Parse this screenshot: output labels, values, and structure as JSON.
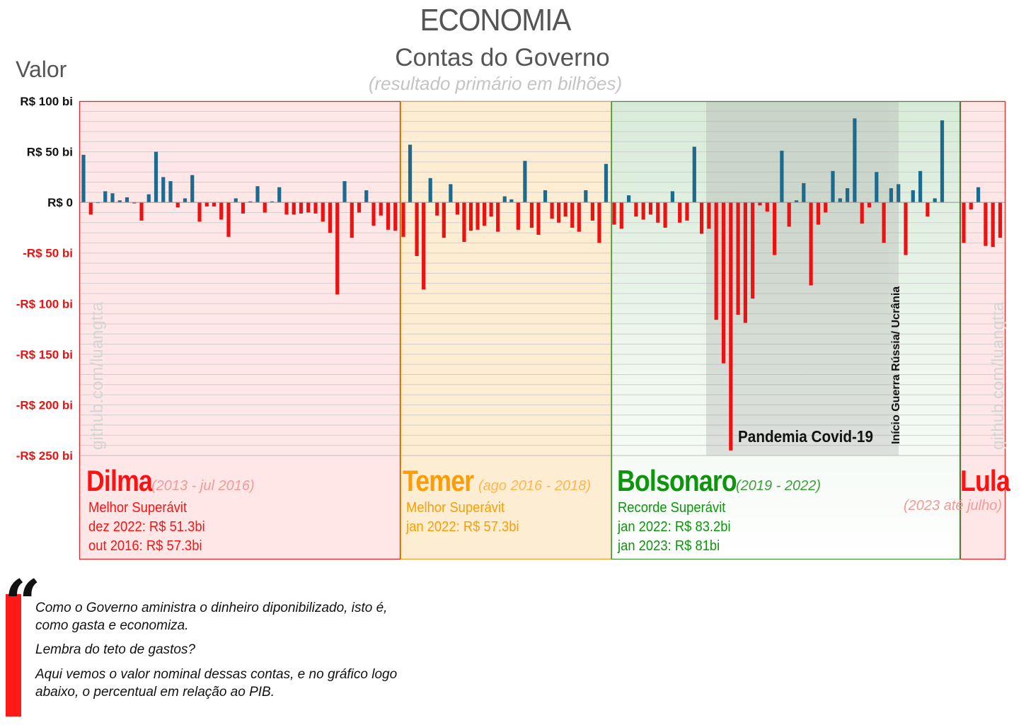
{
  "header": {
    "title": "ECONOMIA",
    "subtitle": "Contas do Governo",
    "note": "(resultado primário em bilhões)",
    "y_axis_title": "Valor"
  },
  "colors": {
    "positive_bar": "#1c6a8e",
    "negative_bar": "#ee1111",
    "dilma": "#ff1111",
    "temer": "#ff9d00",
    "bolsonaro": "#0c960c",
    "lula": "#ff1111",
    "pandemic_shade": "#9a9a9a",
    "grid": "#cfcfcf"
  },
  "chart_data": {
    "type": "bar",
    "title": "Contas do Governo",
    "subtitle": "(resultado primário em bilhões)",
    "ylabel": "Valor",
    "ylim": [
      -250,
      100
    ],
    "yticks": [
      {
        "value": 100,
        "label": "R$ 100 bi"
      },
      {
        "value": 50,
        "label": "R$ 50 bi"
      },
      {
        "value": 0,
        "label": "R$ 0"
      },
      {
        "value": -50,
        "label": "-R$ 50 bi"
      },
      {
        "value": -100,
        "label": "-R$ 100 bi"
      },
      {
        "value": -150,
        "label": "-R$ 150 bi"
      },
      {
        "value": -200,
        "label": "-R$ 200 bi"
      },
      {
        "value": -250,
        "label": "-R$ 250 bi"
      }
    ],
    "grid": true,
    "groups": [
      {
        "name": "Dilma",
        "values": [
          47,
          -12,
          0,
          11,
          9,
          2,
          5,
          -1,
          -18,
          8,
          50,
          25,
          21,
          -5,
          4,
          27,
          -19,
          -4,
          -4,
          -17,
          -34,
          4,
          -11,
          1,
          16,
          -10,
          1,
          15,
          -12,
          -12,
          -11,
          -10,
          -11,
          -19,
          -30,
          -91,
          21,
          -35,
          -10,
          12,
          -23,
          -13,
          -27,
          -28
        ]
      },
      {
        "name": "Temer",
        "values": [
          -34,
          57,
          -53,
          -86,
          24,
          -13,
          -35,
          18,
          -12,
          -39,
          -28,
          -27,
          -23,
          -14,
          -29,
          6,
          3,
          -27,
          41,
          -25,
          -32,
          12,
          -16,
          -20,
          -14,
          -25,
          -29,
          12,
          -18,
          -40,
          38
        ]
      },
      {
        "name": "Bolsonaro",
        "values": [
          -22,
          -26,
          7,
          -14,
          -17,
          -12,
          -20,
          -25,
          11,
          -20,
          -18,
          55,
          -31,
          -26,
          -116,
          -159,
          -245,
          -111,
          -119,
          -95,
          -3,
          -9,
          -52,
          51,
          -24,
          2,
          19,
          -82,
          -22,
          -10,
          31,
          4,
          14,
          83,
          -21,
          -5,
          30,
          -40,
          14,
          18,
          -52,
          12,
          31,
          -14,
          4,
          81
        ]
      },
      {
        "name": "Lula",
        "values": [
          -40,
          -7,
          15,
          -43,
          -44,
          -35
        ]
      }
    ],
    "annotations": [
      {
        "text": "Pandemia Covid-19",
        "range": "Bolsonaro 2020-2021"
      },
      {
        "text": "Início Guerra Rússia/ Ucrânia",
        "at": "Bolsonaro 2022"
      }
    ]
  },
  "governments": [
    {
      "name": "Dilma",
      "period": "(2013 - jul 2016)",
      "lines": [
        "Melhor Superávit",
        "dez 2022: R$ 51.3bi",
        "out 2016: R$ 57.3bi"
      ]
    },
    {
      "name": "Temer",
      "period": "(ago 2016 - 2018)",
      "lines": [
        "Melhor Superávit",
        "jan 2022: R$ 57.3bi"
      ]
    },
    {
      "name": "Bolsonaro",
      "period": "(2019 - 2022)",
      "lines": [
        "Recorde Superávit",
        "jan 2022: R$ 83.2bi",
        "jan 2023: R$ 81bi"
      ]
    },
    {
      "name": "Lula",
      "period": "(2023 até julho)",
      "lines": []
    }
  ],
  "watermark": "github.com/luangtta",
  "quote": {
    "p1_line1": "Como o Governo aministra o dinheiro diponibilizado, isto é,",
    "p1_line2": "como gasta e economiza.",
    "p2": "Lembra do teto de gastos?",
    "p3_line1": "Aqui vemos o valor nominal dessas contas, e no gráfico logo",
    "p3_line2": "abaixo, o percentual em relação ao PIB."
  }
}
